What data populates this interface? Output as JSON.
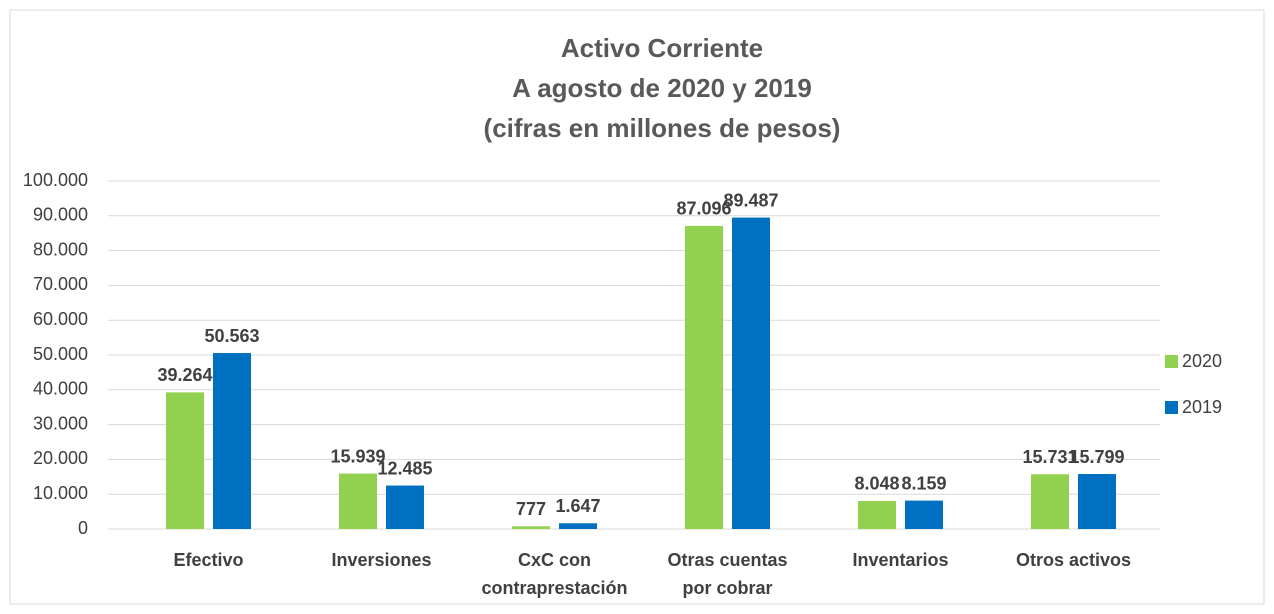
{
  "chart_data": {
    "type": "bar",
    "title": [
      "Activo Corriente",
      "A agosto de 2020 y 2019",
      "(cifras en millones de pesos)"
    ],
    "categories": [
      [
        "Efectivo"
      ],
      [
        "Inversiones"
      ],
      [
        "CxC con",
        "contraprestación"
      ],
      [
        "Otras cuentas",
        "por cobrar"
      ],
      [
        "Inventarios"
      ],
      [
        "Otros activos"
      ]
    ],
    "series": [
      {
        "name": "2020",
        "color": "#92d050",
        "values": [
          39264,
          15939,
          777,
          87096,
          8048,
          15731
        ],
        "value_labels": [
          "39.264",
          "15.939",
          "777",
          "87.096",
          "8.048",
          "15.731"
        ]
      },
      {
        "name": "2019",
        "color": "#0070c0",
        "values": [
          50563,
          12485,
          1647,
          89487,
          8159,
          15799
        ],
        "value_labels": [
          "50.563",
          "12.485",
          "1.647",
          "89.487",
          "8.159",
          "15.799"
        ]
      }
    ],
    "ylim": [
      0,
      100000
    ],
    "yticks": [
      {
        "value": 0,
        "label": "0"
      },
      {
        "value": 10000,
        "label": "10.000"
      },
      {
        "value": 20000,
        "label": "20.000"
      },
      {
        "value": 30000,
        "label": "30.000"
      },
      {
        "value": 40000,
        "label": "40.000"
      },
      {
        "value": 50000,
        "label": "50.000"
      },
      {
        "value": 60000,
        "label": "60.000"
      },
      {
        "value": 70000,
        "label": "70.000"
      },
      {
        "value": 80000,
        "label": "80.000"
      },
      {
        "value": 90000,
        "label": "90.000"
      },
      {
        "value": 100000,
        "label": "100.000"
      }
    ],
    "grid": true,
    "legend": "right"
  }
}
